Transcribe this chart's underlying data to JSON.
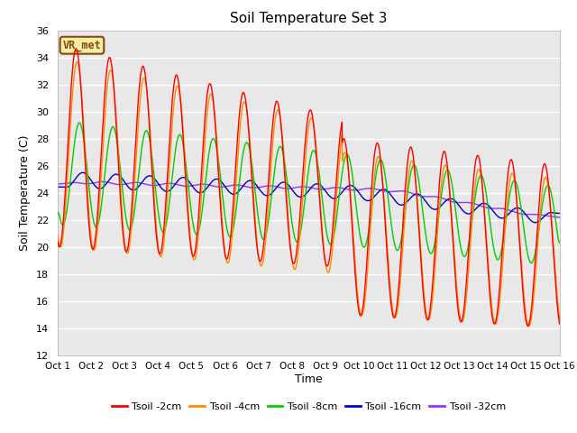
{
  "title": "Soil Temperature Set 3",
  "xlabel": "Time",
  "ylabel": "Soil Temperature (C)",
  "ylim": [
    12,
    36
  ],
  "yticks": [
    12,
    14,
    16,
    18,
    20,
    22,
    24,
    26,
    28,
    30,
    32,
    34,
    36
  ],
  "xtick_labels": [
    "Oct 1",
    "Oct 2",
    "Oct 3",
    "Oct 4",
    "Oct 5",
    "Oct 6",
    "Oct 7",
    "Oct 8",
    "Oct 9",
    "Oct 10",
    "Oct 11",
    "Oct 12",
    "Oct 13",
    "Oct 14",
    "Oct 15",
    "Oct 16"
  ],
  "annotation_text": "VR_met",
  "annotation_color": "#8B4513",
  "annotation_bg": "#F0F0A0",
  "line_colors": {
    "2cm": "#FF0000",
    "4cm": "#FF8C00",
    "8cm": "#00CC00",
    "16cm": "#0000CD",
    "32cm": "#9B30FF"
  },
  "legend_labels": [
    "Tsoil -2cm",
    "Tsoil -4cm",
    "Tsoil -8cm",
    "Tsoil -16cm",
    "Tsoil -32cm"
  ],
  "background_color": "#E8E8E8",
  "grid_color": "#FFFFFF",
  "n_days": 15,
  "points_per_day": 144
}
